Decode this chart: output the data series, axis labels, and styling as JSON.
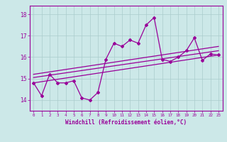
{
  "xlabel": "Windchill (Refroidissement éolien,°C)",
  "ylabel": "",
  "bg_color": "#cce8e8",
  "line_color": "#990099",
  "grid_color": "#aacccc",
  "x_ticks": [
    0,
    1,
    2,
    3,
    4,
    5,
    6,
    7,
    8,
    9,
    10,
    11,
    12,
    13,
    14,
    15,
    16,
    17,
    18,
    19,
    20,
    21,
    22,
    23
  ],
  "y_ticks": [
    14,
    15,
    16,
    17,
    18
  ],
  "ylim": [
    13.5,
    18.4
  ],
  "xlim": [
    -0.5,
    23.5
  ],
  "series1": [
    14.8,
    14.2,
    15.2,
    14.8,
    14.8,
    14.9,
    14.1,
    14.0,
    14.35,
    15.9,
    16.65,
    16.5,
    16.8,
    16.65,
    17.5,
    17.85,
    15.9,
    15.8,
    16.0,
    16.3,
    16.9,
    15.85,
    16.15,
    16.1
  ],
  "series2_x": [
    0,
    23
  ],
  "series2_y": [
    14.8,
    16.1
  ],
  "series3_x": [
    0,
    23
  ],
  "series3_y": [
    15.2,
    16.5
  ],
  "series4_x": [
    0,
    23
  ],
  "series4_y": [
    15.05,
    16.3
  ]
}
